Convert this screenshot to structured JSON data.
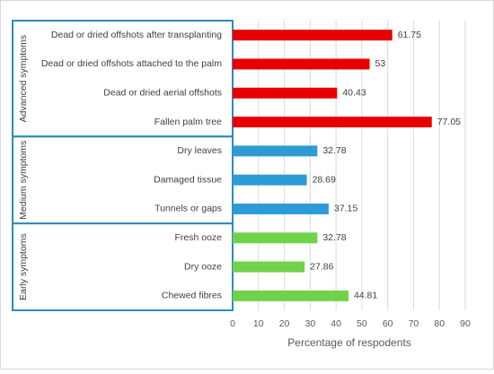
{
  "chart_data": {
    "type": "bar",
    "orientation": "horizontal",
    "xlabel": "Percentage of respodents",
    "xlim": [
      0,
      90
    ],
    "xticks": [
      0,
      10,
      20,
      30,
      40,
      50,
      60,
      70,
      80,
      90
    ],
    "grid": "vertical",
    "categories": [
      "Dead or dried offshots after transplanting",
      "Dead or dried offshots attached to the palm",
      "Dead or dried aerial offshots",
      "Fallen palm tree",
      "Dry leaves",
      "Damaged tissue",
      "Tunnels or gaps",
      "Fresh ooze",
      "Dry ooze",
      "Chewed fibres"
    ],
    "values": [
      61.75,
      53,
      40.43,
      77.05,
      32.78,
      28.69,
      37.15,
      32.78,
      27.86,
      44.81
    ],
    "value_labels": [
      "61.75",
      "53",
      "40.43",
      "77.05",
      "32.78",
      "28.69",
      "37.15",
      "32.78",
      "27.86",
      "44.81"
    ],
    "groups": [
      {
        "label": "Advanced symptoms",
        "start": 0,
        "count": 4,
        "color": "#e60000"
      },
      {
        "label": "Medium symptoms",
        "start": 4,
        "count": 3,
        "color": "#2e9bd6"
      },
      {
        "label": "Early symptoms",
        "start": 7,
        "count": 3,
        "color": "#70d14a"
      }
    ],
    "frame_color": "#2e8bc0"
  }
}
